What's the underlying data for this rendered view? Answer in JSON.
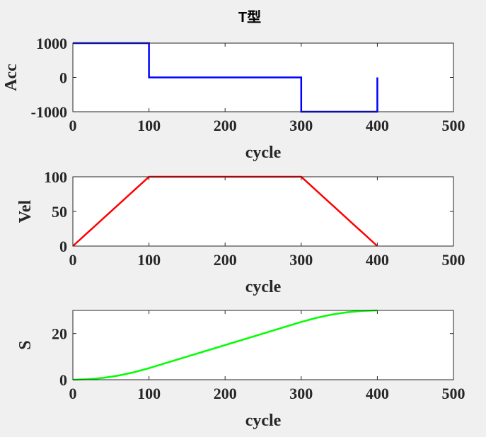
{
  "figure": {
    "title": "T型"
  },
  "colors": {
    "background": "#f0f0f0",
    "axes_face": "#ffffff",
    "axes_edge": "#262626"
  },
  "chart_data": [
    {
      "type": "line",
      "title": "T型",
      "xlabel": "cycle",
      "ylabel": "Acc",
      "xlim": [
        0,
        500
      ],
      "ylim": [
        -1000,
        1000
      ],
      "xticks": [
        0,
        100,
        200,
        300,
        400,
        500
      ],
      "yticks": [
        -1000,
        0,
        1000
      ],
      "grid": false,
      "series": [
        {
          "color": "#0000ff",
          "x": [
            0,
            100,
            100,
            300,
            300,
            400,
            400
          ],
          "y": [
            1000,
            1000,
            0,
            0,
            -1000,
            -1000,
            0
          ]
        }
      ]
    },
    {
      "type": "line",
      "xlabel": "cycle",
      "ylabel": "Vel",
      "xlim": [
        0,
        500
      ],
      "ylim": [
        0,
        100
      ],
      "xticks": [
        0,
        100,
        200,
        300,
        400,
        500
      ],
      "yticks": [
        0,
        50,
        100
      ],
      "grid": false,
      "series": [
        {
          "color": "#ff0000",
          "x": [
            0,
            100,
            300,
            400
          ],
          "y": [
            0,
            100,
            100,
            0
          ]
        }
      ]
    },
    {
      "type": "line",
      "xlabel": "cycle",
      "ylabel": "S",
      "xlim": [
        0,
        500
      ],
      "ylim": [
        0,
        30
      ],
      "xticks": [
        0,
        100,
        200,
        300,
        400,
        500
      ],
      "yticks": [
        0,
        20
      ],
      "grid": false,
      "series": [
        {
          "color": "#00ff00",
          "x": [
            0,
            20,
            40,
            60,
            80,
            100,
            150,
            200,
            250,
            300,
            320,
            340,
            360,
            380,
            400
          ],
          "y": [
            0,
            0.2,
            0.8,
            1.8,
            3.2,
            5,
            10,
            15,
            20,
            25,
            26.8,
            28.2,
            29.2,
            29.8,
            30
          ]
        }
      ]
    }
  ]
}
